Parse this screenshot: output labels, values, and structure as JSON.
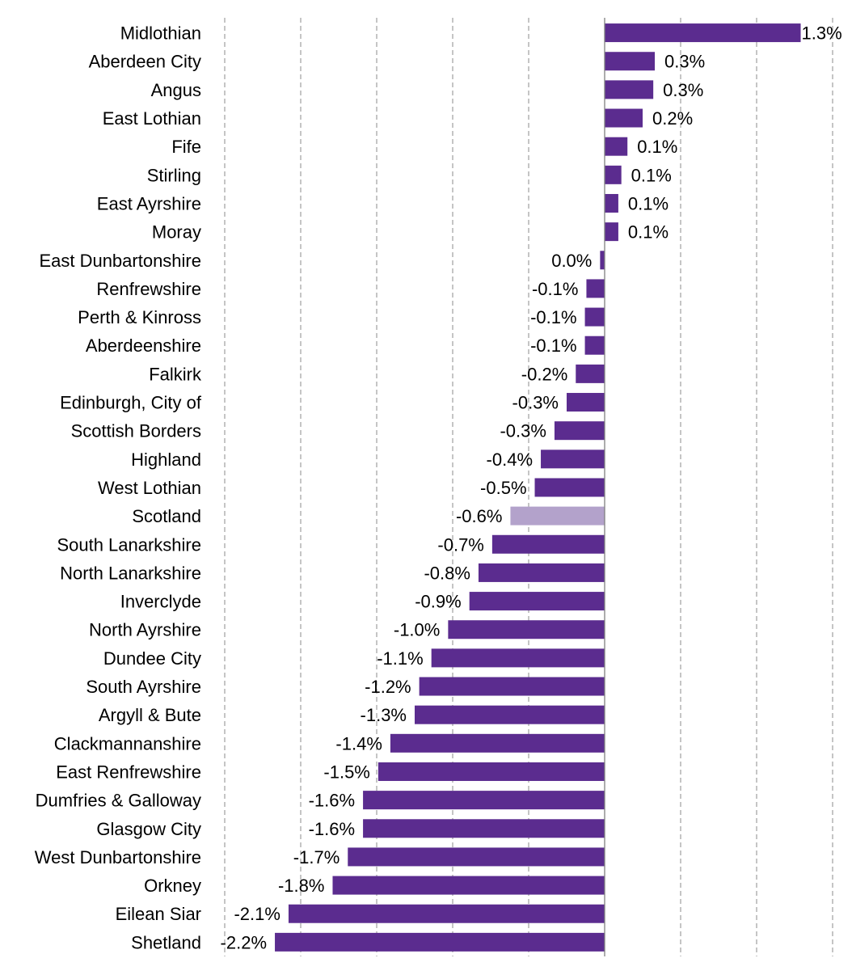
{
  "chart_data": {
    "type": "bar",
    "orientation": "horizontal",
    "title": "",
    "xlabel": "",
    "ylabel": "",
    "xlim": [
      -2.5,
      1.5
    ],
    "grid": true,
    "categories": [
      "Midlothian",
      "Aberdeen City",
      "Angus",
      "East Lothian",
      "Fife",
      "Stirling",
      "East Ayrshire",
      "Moray",
      "East Dunbartonshire",
      "Renfrewshire",
      "Perth & Kinross",
      "Aberdeenshire",
      "Falkirk",
      "Edinburgh, City of",
      "Scottish Borders",
      "Highland",
      "West Lothian",
      "Scotland",
      "South Lanarkshire",
      "North Lanarkshire",
      "Inverclyde",
      "North Ayrshire",
      "Dundee City",
      "South Ayrshire",
      "Argyll & Bute",
      "Clackmannanshire",
      "East Renfrewshire",
      "Dumfries & Galloway",
      "Glasgow City",
      "West Dunbartonshire",
      "Orkney",
      "Eilean Siar",
      "Shetland"
    ],
    "values": [
      1.29,
      0.33,
      0.32,
      0.25,
      0.15,
      0.11,
      0.09,
      0.09,
      -0.03,
      -0.12,
      -0.13,
      -0.13,
      -0.19,
      -0.25,
      -0.33,
      -0.42,
      -0.46,
      -0.62,
      -0.74,
      -0.83,
      -0.89,
      -1.03,
      -1.14,
      -1.22,
      -1.25,
      -1.41,
      -1.49,
      -1.59,
      -1.59,
      -1.69,
      -1.79,
      -2.08,
      -2.17
    ],
    "value_labels": [
      "1.3%",
      "0.3%",
      "0.3%",
      "0.2%",
      "0.1%",
      "0.1%",
      "0.1%",
      "0.1%",
      "0.0%",
      "-0.1%",
      "-0.1%",
      "-0.1%",
      "-0.2%",
      "-0.3%",
      "-0.3%",
      "-0.4%",
      "-0.5%",
      "-0.6%",
      "-0.7%",
      "-0.8%",
      "-0.9%",
      "-1.0%",
      "-1.1%",
      "-1.2%",
      "-1.3%",
      "-1.4%",
      "-1.5%",
      "-1.6%",
      "-1.6%",
      "-1.7%",
      "-1.8%",
      "-2.1%",
      "-2.2%"
    ],
    "highlight_category": "Scotland",
    "colors": {
      "bar": "#5b2c8f",
      "highlight": "#b3a2cb"
    }
  }
}
